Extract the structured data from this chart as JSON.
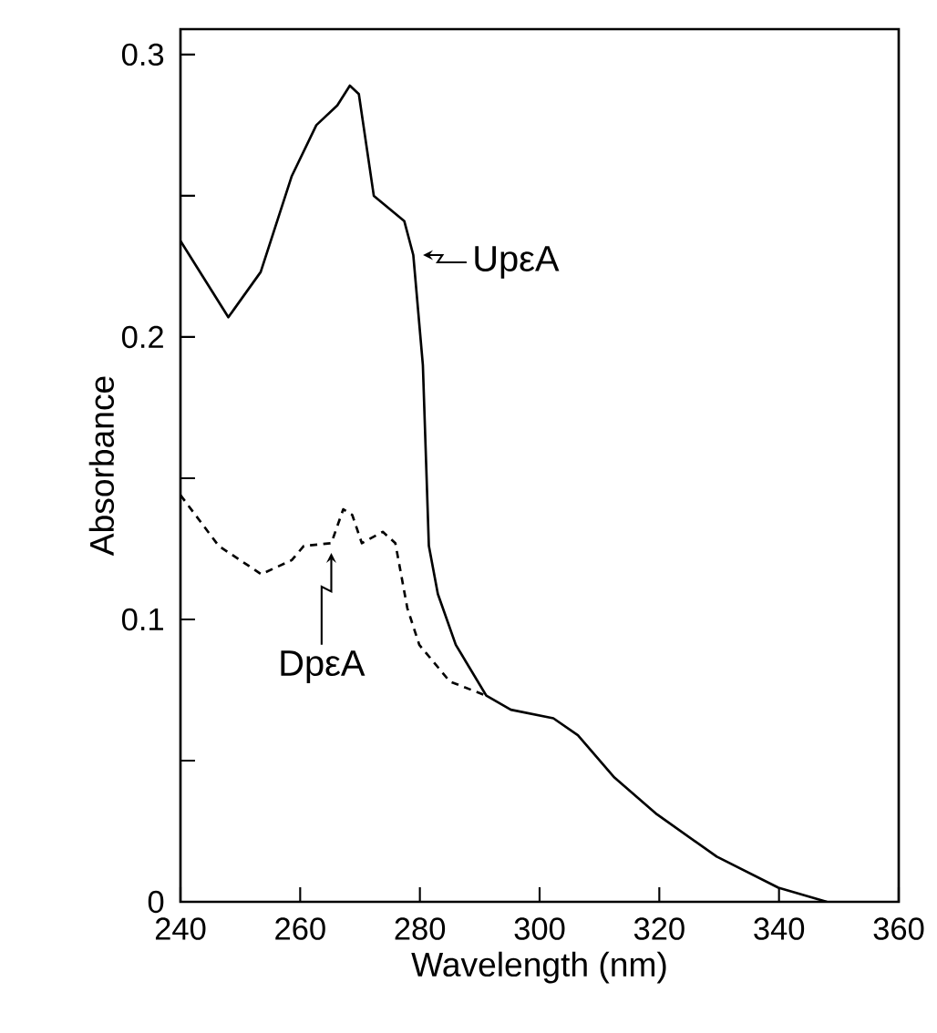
{
  "chart_data": {
    "type": "line",
    "xlabel": "Wavelength (nm)",
    "ylabel": "Absorbance",
    "xlim": [
      240,
      360
    ],
    "ylim": [
      0,
      0.309
    ],
    "xticks": [
      240,
      260,
      280,
      300,
      320,
      340,
      360
    ],
    "yticks": [
      0,
      {
        "value": 0.05,
        "label": null
      },
      0.1,
      {
        "value": 0.15,
        "label": null
      },
      0.2,
      {
        "value": 0.25,
        "label": null
      },
      0.3
    ],
    "grid": false,
    "marker": "none",
    "series": [
      {
        "color": "#000000",
        "line_style": "solid",
        "x": [
          240,
          248,
          253.4,
          258.6,
          262.7,
          266.2,
          268.3,
          269.8,
          272.3,
          277.4,
          278.9,
          280.5,
          281.5,
          283,
          286,
          291.1,
          295.2,
          302.3,
          306.4,
          312.5,
          319.6,
          329.6,
          339.9,
          348
        ],
        "values": [
          0.234,
          0.207,
          0.223,
          0.257,
          0.275,
          0.282,
          0.289,
          0.286,
          0.25,
          0.241,
          0.229,
          0.19,
          0.126,
          0.109,
          0.091,
          0.073,
          0.068,
          0.065,
          0.059,
          0.044,
          0.031,
          0.016,
          0.005,
          0
        ]
      },
      {
        "color": "#000000",
        "line_style": "dashed",
        "x": [
          240,
          246.4,
          253.5,
          258.6,
          260.6,
          265.2,
          267.2,
          268.7,
          270.3,
          273.8,
          275.9,
          277.9,
          279.9,
          285,
          291.1
        ],
        "values": [
          0.144,
          0.126,
          0.116,
          0.121,
          0.126,
          0.127,
          0.139,
          0.137,
          0.127,
          0.131,
          0.127,
          0.104,
          0.091,
          0.078,
          0.073
        ]
      }
    ],
    "annotations": [
      {
        "text": "UpεA",
        "x": 278.9,
        "y": 0.229
      },
      {
        "text": "DpεA",
        "x": 265.2,
        "y": 0.127
      }
    ]
  }
}
